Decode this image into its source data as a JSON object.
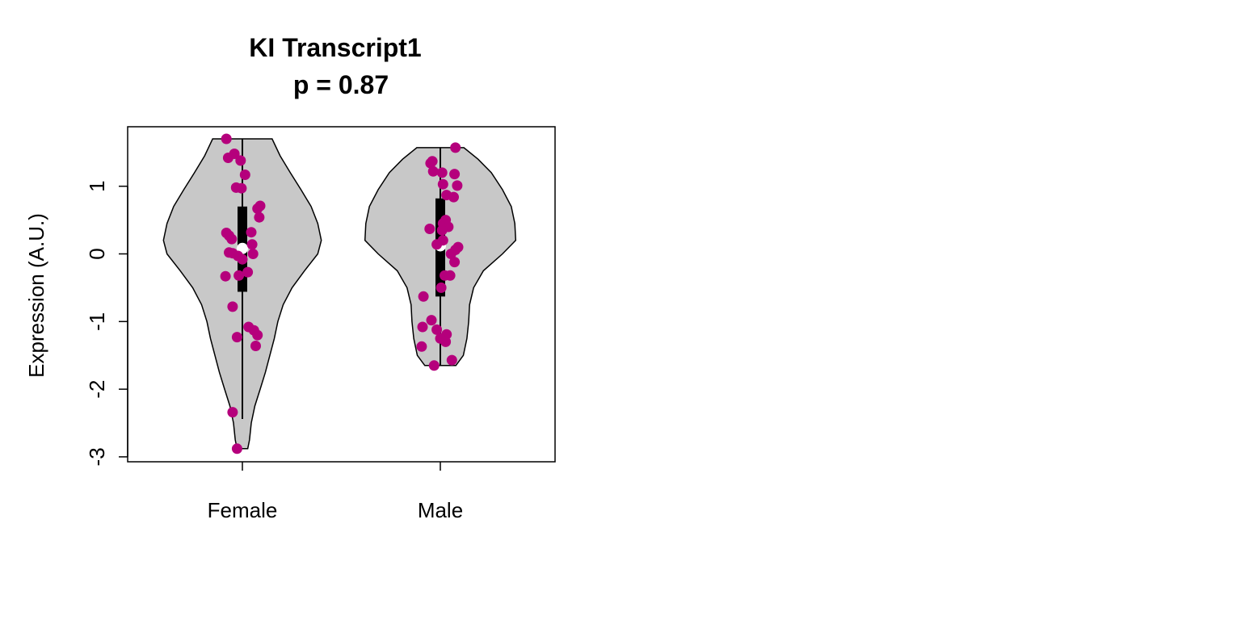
{
  "chart_data": {
    "type": "violin",
    "title": "KI Transcript1",
    "subtitle": "p = 0.87",
    "xlabel": "",
    "ylabel": "Expression (A.U.)",
    "categories": [
      "Female",
      "Male"
    ],
    "y_ticks": [
      1,
      0,
      -1,
      -2,
      -3
    ],
    "ylim": [
      -3.05,
      1.88
    ],
    "violin_fill": "#c8c8c8",
    "point_color": "#b5007c",
    "median_color": "#ffffff",
    "grid": false,
    "legend": "none",
    "groups": [
      {
        "name": "Female",
        "min": -2.88,
        "max": 1.7,
        "whisker_low": -2.44,
        "q1": -0.56,
        "median": 0.08,
        "q3": 0.7,
        "violin_profile": [
          [
            -2.88,
            0.12
          ],
          [
            -2.75,
            0.16
          ],
          [
            -2.5,
            0.2
          ],
          [
            -2.25,
            0.28
          ],
          [
            -2.0,
            0.4
          ],
          [
            -1.75,
            0.52
          ],
          [
            -1.5,
            0.62
          ],
          [
            -1.25,
            0.72
          ],
          [
            -1.0,
            0.8
          ],
          [
            -0.75,
            0.92
          ],
          [
            -0.5,
            1.12
          ],
          [
            -0.25,
            1.4
          ],
          [
            0.0,
            1.7
          ],
          [
            0.2,
            1.78
          ],
          [
            0.45,
            1.7
          ],
          [
            0.7,
            1.55
          ],
          [
            0.95,
            1.32
          ],
          [
            1.2,
            1.08
          ],
          [
            1.45,
            0.85
          ],
          [
            1.7,
            0.67
          ]
        ],
        "points": [
          [
            1.7,
            -0.18
          ],
          [
            1.48,
            -0.09
          ],
          [
            1.42,
            -0.16
          ],
          [
            1.38,
            -0.02
          ],
          [
            1.17,
            0.03
          ],
          [
            0.98,
            -0.07
          ],
          [
            0.97,
            -0.01
          ],
          [
            0.71,
            0.2
          ],
          [
            0.67,
            0.17
          ],
          [
            0.54,
            0.19
          ],
          [
            0.32,
            0.1
          ],
          [
            0.31,
            -0.18
          ],
          [
            0.27,
            -0.15
          ],
          [
            0.22,
            -0.12
          ],
          [
            0.14,
            0.11
          ],
          [
            0.02,
            -0.15
          ],
          [
            0.01,
            -0.11
          ],
          [
            0.0,
            0.12
          ],
          [
            -0.03,
            -0.05
          ],
          [
            -0.08,
            0.0
          ],
          [
            -0.27,
            0.06
          ],
          [
            -0.32,
            -0.04
          ],
          [
            -0.33,
            -0.19
          ],
          [
            -0.78,
            -0.11
          ],
          [
            -1.08,
            0.07
          ],
          [
            -1.13,
            0.13
          ],
          [
            -1.2,
            0.17
          ],
          [
            -1.23,
            -0.06
          ],
          [
            -1.36,
            0.15
          ],
          [
            -2.34,
            -0.11
          ],
          [
            -2.88,
            -0.06
          ]
        ]
      },
      {
        "name": "Male",
        "min": -1.65,
        "max": 1.57,
        "whisker_low": -1.65,
        "q1": -0.63,
        "median": 0.12,
        "q3": 0.82,
        "violin_profile": [
          [
            -1.65,
            0.35
          ],
          [
            -1.5,
            0.52
          ],
          [
            -1.25,
            0.6
          ],
          [
            -1.0,
            0.64
          ],
          [
            -0.75,
            0.66
          ],
          [
            -0.5,
            0.75
          ],
          [
            -0.25,
            0.97
          ],
          [
            0.0,
            1.4
          ],
          [
            0.2,
            1.7
          ],
          [
            0.45,
            1.68
          ],
          [
            0.7,
            1.6
          ],
          [
            0.95,
            1.4
          ],
          [
            1.2,
            1.15
          ],
          [
            1.4,
            0.85
          ],
          [
            1.57,
            0.53
          ]
        ],
        "points": [
          [
            1.57,
            0.17
          ],
          [
            1.37,
            -0.09
          ],
          [
            1.34,
            -0.11
          ],
          [
            1.22,
            -0.08
          ],
          [
            1.2,
            0.02
          ],
          [
            1.18,
            0.16
          ],
          [
            1.03,
            0.03
          ],
          [
            1.01,
            0.19
          ],
          [
            0.87,
            0.07
          ],
          [
            0.84,
            0.15
          ],
          [
            0.5,
            0.06
          ],
          [
            0.45,
            0.03
          ],
          [
            0.4,
            0.09
          ],
          [
            0.37,
            -0.12
          ],
          [
            0.35,
            0.02
          ],
          [
            0.2,
            0.03
          ],
          [
            0.14,
            -0.04
          ],
          [
            0.1,
            0.2
          ],
          [
            0.06,
            0.17
          ],
          [
            0.0,
            0.12
          ],
          [
            -0.12,
            0.16
          ],
          [
            -0.32,
            0.05
          ],
          [
            -0.32,
            0.11
          ],
          [
            -0.5,
            0.01
          ],
          [
            -0.63,
            -0.19
          ],
          [
            -0.98,
            -0.1
          ],
          [
            -1.08,
            -0.2
          ],
          [
            -1.12,
            -0.04
          ],
          [
            -1.19,
            0.07
          ],
          [
            -1.25,
            0.0
          ],
          [
            -1.3,
            0.06
          ],
          [
            -1.37,
            -0.21
          ],
          [
            -1.57,
            0.13
          ],
          [
            -1.65,
            -0.07
          ]
        ]
      }
    ]
  }
}
